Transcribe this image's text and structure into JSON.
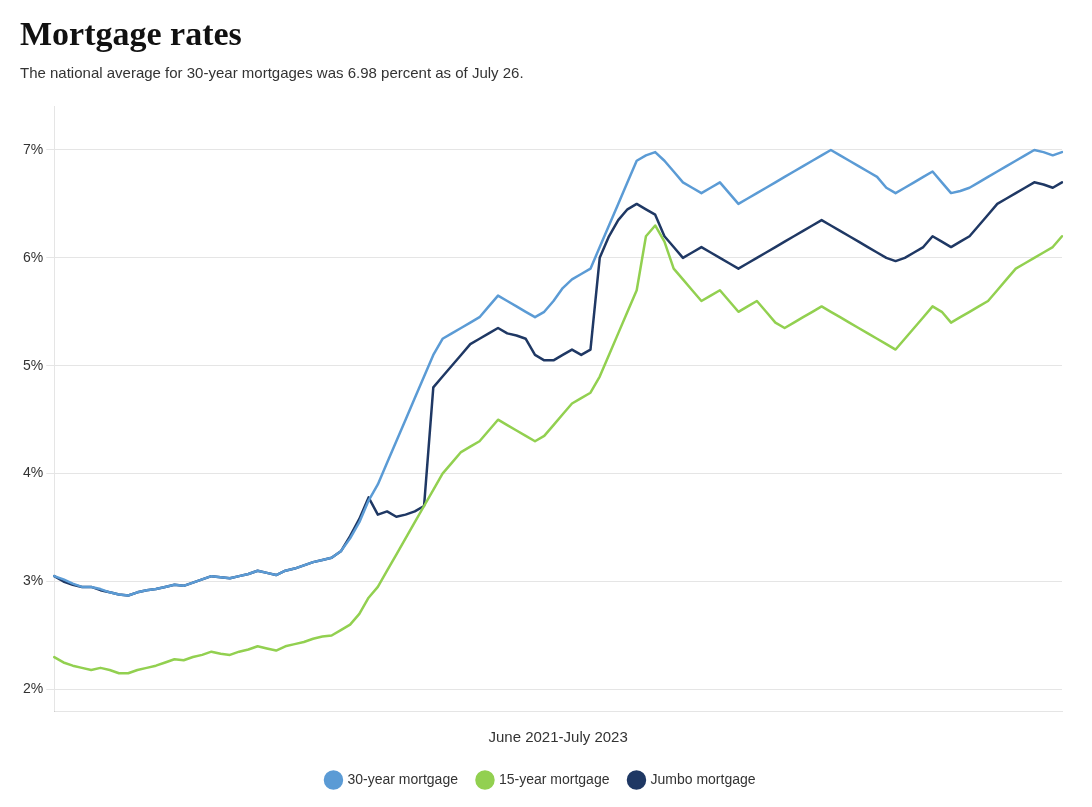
{
  "chart_data": {
    "type": "line",
    "title": "Mortgage rates",
    "subtitle": "The national average for 30-year mortgages was 6.98 percent as of July 26.",
    "xlabel": "June 2021-July 2023",
    "categories": [
      null,
      null,
      null,
      null,
      null,
      null,
      null,
      null,
      null,
      null,
      null,
      null,
      null,
      null,
      null,
      null,
      null,
      null,
      null,
      null,
      null,
      null,
      null,
      null,
      null,
      null,
      null,
      null,
      null,
      null,
      null,
      null,
      null,
      null,
      null,
      null,
      null,
      null,
      null,
      null,
      null,
      null,
      null,
      null,
      null,
      null,
      null,
      null,
      null,
      null,
      null,
      null,
      null,
      null,
      null,
      null,
      null,
      null,
      null,
      null,
      null,
      null,
      null,
      null,
      null,
      null,
      null,
      null,
      null,
      null,
      null,
      null,
      null,
      null,
      null,
      null,
      null,
      null,
      null,
      null,
      null,
      null,
      null,
      null,
      null,
      null,
      null,
      null,
      null,
      null,
      null,
      null,
      null,
      null,
      null,
      null,
      null,
      null,
      null,
      null,
      null,
      null,
      null,
      null,
      null,
      null,
      null,
      null,
      null,
      null
    ],
    "series": [
      {
        "name": "30-year mortgage",
        "color": "#5B9BD5",
        "values": [
          3.05,
          3.02,
          2.98,
          2.95,
          2.95,
          2.93,
          2.9,
          2.88,
          2.87,
          2.9,
          2.92,
          2.93,
          2.95,
          2.97,
          2.96,
          2.99,
          3.02,
          3.05,
          3.04,
          3.03,
          3.05,
          3.07,
          3.1,
          3.08,
          3.06,
          3.1,
          3.12,
          3.15,
          3.18,
          3.2,
          3.22,
          3.28,
          3.4,
          3.55,
          3.75,
          3.9,
          4.1,
          4.3,
          4.5,
          4.7,
          4.9,
          5.1,
          5.25,
          5.3,
          5.35,
          5.4,
          5.45,
          5.55,
          5.65,
          5.6,
          5.55,
          5.5,
          5.45,
          5.5,
          5.6,
          5.72,
          5.8,
          5.85,
          5.9,
          6.1,
          6.3,
          6.5,
          6.7,
          6.9,
          6.95,
          6.98,
          6.9,
          6.8,
          6.7,
          6.65,
          6.6,
          6.65,
          6.7,
          6.6,
          6.5,
          6.55,
          6.6,
          6.65,
          6.7,
          6.75,
          6.8,
          6.85,
          6.9,
          6.95,
          7.0,
          6.95,
          6.9,
          6.85,
          6.8,
          6.75,
          6.65,
          6.6,
          6.65,
          6.7,
          6.75,
          6.8,
          6.7,
          6.6,
          6.62,
          6.65,
          6.7,
          6.75,
          6.8,
          6.85,
          6.9,
          6.95,
          7.0,
          6.98,
          6.95,
          6.98
        ]
      },
      {
        "name": "15-year mortgage",
        "color": "#92D050",
        "values": [
          2.3,
          2.25,
          2.22,
          2.2,
          2.18,
          2.2,
          2.18,
          2.15,
          2.15,
          2.18,
          2.2,
          2.22,
          2.25,
          2.28,
          2.27,
          2.3,
          2.32,
          2.35,
          2.33,
          2.32,
          2.35,
          2.37,
          2.4,
          2.38,
          2.36,
          2.4,
          2.42,
          2.44,
          2.47,
          2.49,
          2.5,
          2.55,
          2.6,
          2.7,
          2.85,
          2.95,
          3.1,
          3.25,
          3.4,
          3.55,
          3.7,
          3.85,
          4.0,
          4.1,
          4.2,
          4.25,
          4.3,
          4.4,
          4.5,
          4.45,
          4.4,
          4.35,
          4.3,
          4.35,
          4.45,
          4.55,
          4.65,
          4.7,
          4.75,
          4.9,
          5.1,
          5.3,
          5.5,
          5.7,
          6.2,
          6.3,
          6.15,
          5.9,
          5.8,
          5.7,
          5.6,
          5.65,
          5.7,
          5.6,
          5.5,
          5.55,
          5.6,
          5.5,
          5.4,
          5.35,
          5.4,
          5.45,
          5.5,
          5.55,
          5.5,
          5.45,
          5.4,
          5.35,
          5.3,
          5.25,
          5.2,
          5.15,
          5.25,
          5.35,
          5.45,
          5.55,
          5.5,
          5.4,
          5.45,
          5.5,
          5.55,
          5.6,
          5.7,
          5.8,
          5.9,
          5.95,
          6.0,
          6.05,
          6.1,
          6.2
        ]
      },
      {
        "name": "Jumbo mortgage",
        "color": "#1F3864",
        "values": [
          3.05,
          3.0,
          2.97,
          2.95,
          2.95,
          2.92,
          2.9,
          2.88,
          2.87,
          2.9,
          2.92,
          2.93,
          2.95,
          2.97,
          2.96,
          2.99,
          3.02,
          3.05,
          3.04,
          3.03,
          3.05,
          3.07,
          3.1,
          3.08,
          3.06,
          3.1,
          3.12,
          3.15,
          3.18,
          3.2,
          3.22,
          3.28,
          3.42,
          3.58,
          3.78,
          3.62,
          3.65,
          3.6,
          3.62,
          3.65,
          3.7,
          4.8,
          4.9,
          5.0,
          5.1,
          5.2,
          5.25,
          5.3,
          5.35,
          5.3,
          5.28,
          5.25,
          5.1,
          5.05,
          5.05,
          5.1,
          5.15,
          5.1,
          5.15,
          6.0,
          6.2,
          6.35,
          6.45,
          6.5,
          6.45,
          6.4,
          6.2,
          6.1,
          6.0,
          6.05,
          6.1,
          6.05,
          6.0,
          5.95,
          5.9,
          5.95,
          6.0,
          6.05,
          6.1,
          6.15,
          6.2,
          6.25,
          6.3,
          6.35,
          6.3,
          6.25,
          6.2,
          6.15,
          6.1,
          6.05,
          6.0,
          5.97,
          6.0,
          6.05,
          6.1,
          6.2,
          6.15,
          6.1,
          6.15,
          6.2,
          6.3,
          6.4,
          6.5,
          6.55,
          6.6,
          6.65,
          6.7,
          6.68,
          6.65,
          6.7
        ]
      }
    ],
    "ylim": [
      1.8,
      7.4
    ],
    "yticks": [
      {
        "value": 2,
        "label": "2%"
      },
      {
        "value": 3,
        "label": "3%"
      },
      {
        "value": 4,
        "label": "4%"
      },
      {
        "value": 5,
        "label": "5%"
      },
      {
        "value": 6,
        "label": "6%"
      },
      {
        "value": 7,
        "label": "7%"
      }
    ],
    "grid": true,
    "legend": "bottom",
    "tick_labels": "y"
  }
}
